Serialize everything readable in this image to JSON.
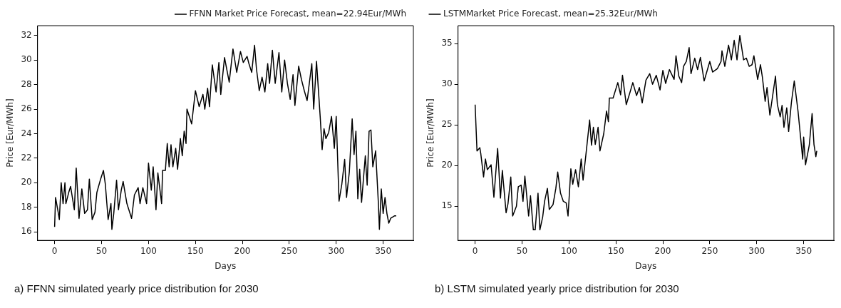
{
  "chart_data": [
    {
      "type": "line",
      "xlabel": "Days",
      "ylabel": "Price [Eur/MWh]",
      "xlim": [
        -18.2,
        382.2
      ],
      "xticks": [
        0,
        50,
        100,
        150,
        200,
        250,
        300,
        350
      ],
      "ylim": [
        15.3,
        32.8
      ],
      "yticks": [
        16,
        18,
        20,
        22,
        24,
        26,
        28,
        30,
        32
      ],
      "grid": false,
      "legend": "top right",
      "line_style": "solid",
      "annotations": [
        "a) FFNN simulated yearly price distribution for 2030"
      ],
      "series": [
        {
          "name": "FFNN Market Price Forecast, mean=22.94Eur/MWh",
          "color": "#000000",
          "x": [
            0,
            1,
            4,
            5,
            7,
            9,
            11,
            12,
            15,
            17,
            21,
            23,
            26,
            29,
            32,
            35,
            37,
            40,
            43,
            45,
            49,
            52,
            54,
            57,
            60,
            61,
            63,
            66,
            68,
            71,
            73,
            77,
            82,
            85,
            89,
            91,
            94,
            98,
            100,
            103,
            105,
            108,
            110,
            114,
            115,
            118,
            120,
            122,
            124,
            126,
            129,
            131,
            134,
            136,
            138,
            140,
            141,
            146,
            150,
            154,
            158,
            160,
            163,
            165,
            168,
            172,
            175,
            177,
            181,
            186,
            190,
            194,
            198,
            201,
            205,
            207,
            210,
            213,
            215,
            218,
            221,
            224,
            227,
            229,
            232,
            235,
            239,
            242,
            245,
            248,
            251,
            254,
            256,
            260,
            263,
            266,
            269,
            274,
            276,
            279,
            283,
            285,
            287,
            289,
            292,
            295,
            298,
            300,
            303,
            306,
            309,
            311,
            314,
            317,
            319,
            321,
            323,
            325,
            327,
            331,
            333,
            335,
            337,
            339,
            342,
            345,
            346,
            348,
            350,
            352,
            354,
            356,
            358,
            362,
            364
          ],
          "values": [
            16.4,
            18.8,
            17.5,
            17.0,
            20.0,
            18.3,
            20.0,
            18.3,
            19.2,
            19.7,
            17.8,
            21.2,
            17.1,
            19.5,
            17.5,
            17.8,
            20.3,
            17.0,
            17.6,
            19.2,
            20.3,
            21.0,
            19.9,
            17.0,
            18.3,
            16.2,
            17.5,
            20.2,
            17.8,
            19.4,
            20.1,
            18.3,
            17.1,
            19.0,
            19.6,
            18.3,
            19.6,
            18.3,
            21.6,
            19.4,
            21.3,
            17.8,
            20.8,
            18.3,
            21.0,
            21.0,
            23.2,
            21.3,
            23.1,
            21.3,
            22.8,
            21.1,
            23.6,
            22.2,
            24.2,
            23.2,
            26.0,
            24.8,
            27.5,
            26.2,
            27.2,
            26.0,
            27.7,
            26.2,
            29.6,
            27.4,
            29.8,
            27.2,
            30.2,
            28.2,
            30.9,
            29.0,
            30.7,
            29.8,
            30.3,
            29.7,
            29.0,
            31.2,
            29.3,
            27.5,
            28.6,
            27.4,
            29.7,
            28.1,
            30.8,
            28.1,
            30.6,
            27.4,
            30.0,
            28.1,
            26.8,
            28.8,
            26.3,
            29.5,
            28.4,
            27.5,
            26.7,
            29.7,
            26.0,
            29.9,
            25.3,
            22.7,
            24.4,
            23.6,
            24.1,
            25.4,
            22.8,
            25.4,
            18.5,
            19.9,
            21.9,
            18.8,
            20.9,
            25.2,
            22.3,
            24.2,
            18.7,
            21.1,
            18.4,
            22.2,
            19.8,
            24.2,
            24.3,
            21.3,
            22.6,
            18.2,
            16.2,
            19.5,
            17.5,
            18.8,
            17.5,
            16.7,
            17.1,
            17.3,
            17.3
          ]
        }
      ]
    },
    {
      "type": "line",
      "xlabel": "Days",
      "ylabel": "Price [Eur/MWh]",
      "xlim": [
        -18.2,
        382.2
      ],
      "xticks": [
        0,
        50,
        100,
        150,
        200,
        250,
        300,
        350
      ],
      "ylim": [
        10.8,
        37.2
      ],
      "yticks": [
        15,
        20,
        25,
        30,
        35
      ],
      "grid": false,
      "legend": "top left",
      "line_style": "solid",
      "annotations": [
        "b) LSTM simulated yearly price distribution for 2030"
      ],
      "series": [
        {
          "name": "LSTMMarket Price Forecast, mean=25.32Eur/MWh",
          "color": "#000000",
          "x": [
            0,
            2,
            5,
            6,
            9,
            11,
            13,
            17,
            20,
            24,
            27,
            29,
            33,
            35,
            38,
            40,
            44,
            46,
            49,
            51,
            53,
            57,
            59,
            62,
            64,
            67,
            69,
            72,
            74,
            77,
            79,
            83,
            86,
            88,
            91,
            94,
            97,
            99,
            102,
            104,
            107,
            110,
            113,
            115,
            118,
            122,
            124,
            126,
            128,
            131,
            133,
            137,
            140,
            142,
            143,
            147,
            152,
            155,
            157,
            161,
            165,
            168,
            172,
            175,
            178,
            182,
            186,
            189,
            193,
            197,
            200,
            203,
            207,
            212,
            214,
            217,
            220,
            222,
            225,
            228,
            230,
            234,
            237,
            240,
            244,
            250,
            253,
            258,
            262,
            263,
            266,
            270,
            273,
            276,
            279,
            282,
            286,
            289,
            292,
            295,
            297,
            301,
            304,
            306,
            309,
            311,
            314,
            317,
            320,
            322,
            325,
            327,
            329,
            332,
            334,
            337,
            340,
            344,
            349,
            350,
            352,
            356,
            359,
            361,
            363,
            364
          ],
          "values": [
            27.5,
            21.8,
            22.2,
            21.5,
            18.6,
            20.8,
            19.5,
            20.1,
            16.1,
            22.1,
            16.0,
            19.4,
            14.2,
            15.3,
            18.6,
            13.8,
            15.0,
            17.4,
            17.6,
            15.6,
            18.7,
            13.8,
            16.3,
            12.1,
            12.1,
            16.6,
            12.1,
            13.7,
            15.6,
            17.2,
            14.6,
            15.2,
            17.2,
            19.2,
            16.6,
            15.6,
            15.4,
            13.8,
            19.6,
            17.7,
            19.5,
            17.4,
            20.8,
            18.2,
            21.3,
            25.6,
            22.5,
            24.7,
            22.6,
            24.7,
            21.8,
            23.9,
            26.7,
            25.4,
            28.3,
            28.3,
            30.2,
            28.7,
            31.1,
            27.5,
            29.0,
            30.2,
            28.6,
            29.6,
            27.7,
            30.5,
            31.3,
            30.0,
            31.1,
            29.3,
            31.7,
            30.1,
            31.8,
            30.6,
            33.5,
            31.0,
            30.2,
            32.2,
            32.8,
            34.5,
            31.3,
            33.2,
            31.8,
            33.3,
            30.4,
            32.8,
            31.5,
            31.9,
            32.8,
            34.1,
            32.2,
            34.8,
            33.0,
            35.4,
            33.0,
            36.0,
            33.0,
            33.2,
            32.2,
            32.4,
            33.5,
            30.6,
            32.4,
            30.9,
            27.9,
            29.6,
            26.2,
            28.6,
            31.0,
            27.5,
            26.0,
            27.4,
            24.7,
            27.1,
            24.2,
            27.8,
            30.4,
            26.7,
            20.8,
            23.5,
            20.1,
            22.5,
            26.4,
            22.6,
            21.1,
            21.8
          ]
        }
      ]
    }
  ]
}
